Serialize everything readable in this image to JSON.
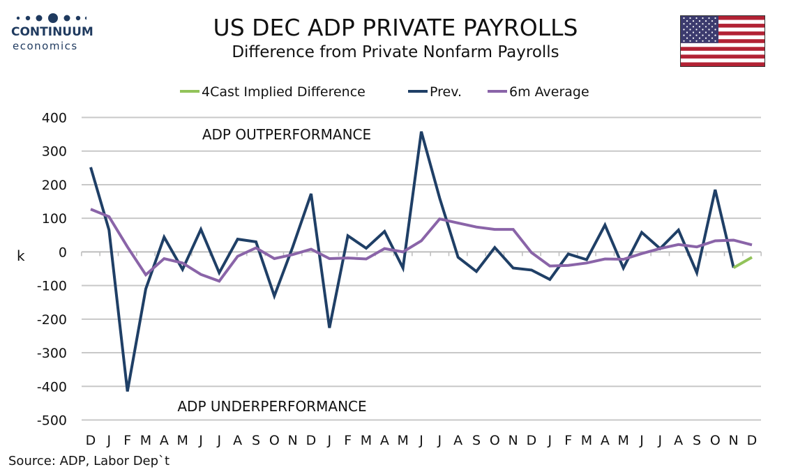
{
  "header": {
    "logo_line1": "CONTINUUM",
    "logo_line2": "economics",
    "title": "US DEC ADP PRIVATE PAYROLLS",
    "subtitle": "Difference from Private Nonfarm Payrolls"
  },
  "source": "Source: ADP, Labor Dep`t",
  "colors": {
    "prev": "#1f3f66",
    "avg": "#8a64a8",
    "forecast": "#92c35a",
    "grid": "#c8c8c8",
    "flag_red": "#b22234",
    "flag_blue": "#3c3b6e"
  },
  "chart_data": {
    "type": "line",
    "title": "US DEC ADP PRIVATE PAYROLLS",
    "subtitle": "Difference from Private Nonfarm Payrolls",
    "ylabel": "k",
    "xlabel": "",
    "ylim": [
      -500,
      400
    ],
    "yticks": [
      400,
      300,
      200,
      100,
      0,
      -100,
      -200,
      -300,
      -400,
      -500
    ],
    "grid": true,
    "legend_position": "top-center",
    "categories": [
      "D",
      "J",
      "F",
      "M",
      "A",
      "M",
      "J",
      "J",
      "A",
      "S",
      "O",
      "N",
      "D",
      "J",
      "F",
      "M",
      "A",
      "M",
      "J",
      "J",
      "A",
      "S",
      "O",
      "N",
      "D",
      "J",
      "F",
      "M",
      "A",
      "M",
      "J",
      "J",
      "A",
      "S",
      "O",
      "N",
      "D"
    ],
    "annotations": [
      "ADP OUTPERFORMANCE",
      "ADP UNDERPERFORMANCE"
    ],
    "series": [
      {
        "name": "4Cast Implied Difference",
        "values": [
          null,
          null,
          null,
          null,
          null,
          null,
          null,
          null,
          null,
          null,
          null,
          null,
          null,
          null,
          null,
          null,
          null,
          null,
          null,
          null,
          null,
          null,
          null,
          null,
          null,
          null,
          null,
          null,
          null,
          null,
          null,
          null,
          null,
          null,
          null,
          -47,
          -16
        ]
      },
      {
        "name": "Prev.",
        "values": [
          252,
          65,
          -415,
          -110,
          44,
          -52,
          67,
          -62,
          38,
          30,
          -131,
          15,
          173,
          -226,
          48,
          11,
          61,
          -48,
          358,
          160,
          -16,
          -58,
          13,
          -48,
          -54,
          -82,
          -6,
          -23,
          80,
          -48,
          58,
          10,
          65,
          -62,
          185,
          -47,
          null
        ]
      },
      {
        "name": "6m Average",
        "values": [
          127,
          105,
          15,
          -68,
          -20,
          -33,
          -67,
          -87,
          -13,
          12,
          -20,
          -8,
          8,
          -20,
          -18,
          -21,
          10,
          0,
          33,
          98,
          86,
          74,
          67,
          67,
          -2,
          -42,
          -40,
          -33,
          -21,
          -22,
          -5,
          10,
          22,
          15,
          33,
          35,
          21
        ]
      }
    ]
  }
}
